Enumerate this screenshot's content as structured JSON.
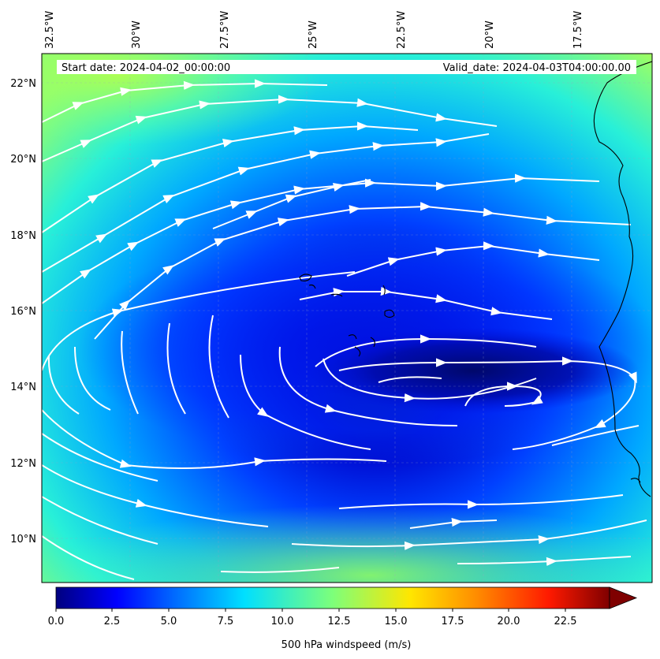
{
  "header": {
    "start_date": "Start date: 2024-04-02_00:00:00",
    "valid_date": "Valid_date: 2024-04-03T04:00:00.00"
  },
  "map": {
    "lon_labels": [
      "32.5°W",
      "30°W",
      "27.5°W",
      "25°W",
      "22.5°W",
      "20°W",
      "17.5°W"
    ],
    "lat_labels": [
      "22°N",
      "20°N",
      "18°N",
      "16°N",
      "14°N",
      "12°N",
      "10°N"
    ],
    "field": "500 hPa windspeed",
    "colormap": "jet",
    "streamline_color": "#ffffff",
    "coastline_color": "#000000"
  },
  "colorbar": {
    "ticks": [
      "0.0",
      "2.5",
      "5.0",
      "7.5",
      "10.0",
      "12.5",
      "15.0",
      "17.5",
      "20.0",
      "22.5"
    ],
    "label": "500 hPa windspeed (m/s)",
    "extend": "max"
  }
}
